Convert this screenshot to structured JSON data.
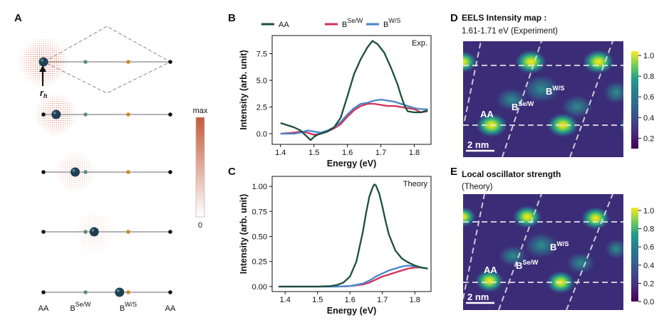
{
  "panels": {
    "a": {
      "letter": "A",
      "r_label": "r",
      "r_sub": "h",
      "scale_max": "max",
      "scale_min": "0",
      "xlabels": {
        "aa1": "AA",
        "bsew": "B",
        "bsew_sup": "Se/W",
        "bws": "B",
        "bws_sup": "W/S",
        "aa2": "AA"
      },
      "exciton_positions": [
        0.0,
        0.1,
        0.25,
        0.4,
        0.6
      ]
    },
    "b": {
      "letter": "B",
      "corner_label": "Exp."
    },
    "c": {
      "letter": "C",
      "corner_label": "Theory"
    },
    "d": {
      "letter": "D",
      "title": "EELS Intensity map :",
      "subtitle": "1.61-1.71 eV (Experiment)",
      "labels": {
        "aa": "AA",
        "bsew": "B",
        "bsew_sup": "Se/W",
        "bws": "B",
        "bws_sup": "W/S"
      },
      "scalebar": "2 nm",
      "colorbar_ticks": [
        "1.0",
        "0.8",
        "0.6",
        "0.4",
        "0.2"
      ]
    },
    "e": {
      "letter": "E",
      "title": "Local oscillator strength",
      "subtitle": "(Theory)",
      "labels": {
        "aa": "AA",
        "bsew": "B",
        "bsew_sup": "Se/W",
        "bws": "B",
        "bws_sup": "W/S"
      },
      "scalebar": "2 nm",
      "colorbar_ticks": [
        "1.0",
        "0.8",
        "0.6",
        "0.4",
        "0.2",
        "0.0"
      ]
    }
  },
  "legend": {
    "aa": "AA",
    "bsew": "B",
    "bsew_sup": "Se/W",
    "bws": "B",
    "bws_sup": "W/S"
  },
  "colors": {
    "aa": "#1d4f3e",
    "bsew": "#d62f5a",
    "bws": "#4a86c8",
    "node_bsew": "#5b8f7e",
    "node_bws": "#c98a2a",
    "exciton": "#1e4052",
    "cloud": "#d9583a"
  },
  "chart_data": [
    {
      "type": "line",
      "panel": "B",
      "xlabel": "Energy (eV)",
      "ylabel": "Intensity (arb. unit)",
      "xlim": [
        1.375,
        1.85
      ],
      "ylim": [
        -1.0,
        9.2
      ],
      "xticks": [
        "1.4",
        "1.5",
        "1.6",
        "1.7",
        "1.8"
      ],
      "yticks": [
        "0.0",
        "2.5",
        "5.0",
        "7.5"
      ],
      "annotation": "Exp.",
      "series": [
        {
          "name": "AA",
          "x": [
            1.4,
            1.42,
            1.44,
            1.46,
            1.48,
            1.49,
            1.5,
            1.51,
            1.52,
            1.54,
            1.56,
            1.58,
            1.6,
            1.62,
            1.64,
            1.66,
            1.675,
            1.69,
            1.71,
            1.73,
            1.75,
            1.76,
            1.77,
            1.78,
            1.8,
            1.82,
            1.84
          ],
          "y": [
            1.0,
            0.8,
            0.6,
            0.3,
            -0.3,
            -0.6,
            -0.3,
            -0.1,
            0.0,
            0.2,
            0.6,
            1.5,
            3.5,
            5.6,
            7.0,
            8.1,
            8.7,
            8.4,
            7.6,
            6.2,
            4.6,
            3.6,
            2.7,
            2.1,
            2.0,
            2.0,
            2.2
          ]
        },
        {
          "name": "Se/W",
          "x": [
            1.4,
            1.42,
            1.44,
            1.46,
            1.48,
            1.5,
            1.52,
            1.54,
            1.56,
            1.58,
            1.6,
            1.62,
            1.64,
            1.66,
            1.68,
            1.7,
            1.72,
            1.74,
            1.76,
            1.78,
            1.8,
            1.82,
            1.84
          ],
          "y": [
            0.0,
            0.05,
            0.1,
            0.2,
            0.1,
            -0.1,
            0.0,
            0.2,
            0.5,
            0.9,
            1.6,
            2.2,
            2.6,
            2.8,
            2.8,
            2.7,
            2.6,
            2.6,
            2.5,
            2.4,
            2.3,
            2.0,
            2.1
          ]
        },
        {
          "name": "W/S",
          "x": [
            1.4,
            1.42,
            1.44,
            1.46,
            1.48,
            1.5,
            1.52,
            1.54,
            1.56,
            1.58,
            1.6,
            1.62,
            1.64,
            1.66,
            1.68,
            1.7,
            1.72,
            1.74,
            1.76,
            1.78,
            1.8,
            1.82,
            1.84
          ],
          "y": [
            0.0,
            0.0,
            0.0,
            0.1,
            0.3,
            0.2,
            0.1,
            0.3,
            0.6,
            1.1,
            1.8,
            2.4,
            2.8,
            2.9,
            3.1,
            3.2,
            3.1,
            3.0,
            2.8,
            2.6,
            2.4,
            2.3,
            2.3
          ]
        }
      ]
    },
    {
      "type": "line",
      "panel": "C",
      "xlabel": "Energy (eV)",
      "ylabel": "Intensity (arb. unit)",
      "xlim": [
        1.36,
        1.85
      ],
      "ylim": [
        -0.05,
        1.1
      ],
      "xticks": [
        "1.4",
        "1.5",
        "1.6",
        "1.7",
        "1.8"
      ],
      "yticks": [
        "0.00",
        "0.25",
        "0.50",
        "0.75",
        "1.00"
      ],
      "annotation": "Theory",
      "series": [
        {
          "name": "AA",
          "x": [
            1.38,
            1.45,
            1.5,
            1.54,
            1.56,
            1.58,
            1.6,
            1.62,
            1.64,
            1.65,
            1.66,
            1.67,
            1.675,
            1.68,
            1.69,
            1.7,
            1.71,
            1.72,
            1.74,
            1.76,
            1.78,
            1.8,
            1.82,
            1.84
          ],
          "y": [
            0.0,
            0.0,
            0.0,
            0.005,
            0.015,
            0.04,
            0.1,
            0.25,
            0.55,
            0.74,
            0.9,
            0.99,
            1.02,
            1.01,
            0.93,
            0.8,
            0.65,
            0.52,
            0.36,
            0.28,
            0.24,
            0.21,
            0.19,
            0.18
          ]
        },
        {
          "name": "Se/W",
          "x": [
            1.38,
            1.5,
            1.56,
            1.6,
            1.64,
            1.66,
            1.68,
            1.7,
            1.72,
            1.74,
            1.76,
            1.78,
            1.8,
            1.82,
            1.84
          ],
          "y": [
            0.0,
            0.0,
            0.0,
            0.005,
            0.02,
            0.04,
            0.07,
            0.1,
            0.12,
            0.14,
            0.16,
            0.18,
            0.19,
            0.19,
            0.18
          ]
        },
        {
          "name": "W/S",
          "x": [
            1.38,
            1.5,
            1.56,
            1.6,
            1.64,
            1.66,
            1.68,
            1.7,
            1.72,
            1.74,
            1.76,
            1.78,
            1.8,
            1.82,
            1.84
          ],
          "y": [
            0.0,
            0.0,
            0.0,
            0.005,
            0.03,
            0.06,
            0.1,
            0.13,
            0.16,
            0.18,
            0.2,
            0.21,
            0.2,
            0.19,
            0.18
          ]
        }
      ]
    }
  ]
}
